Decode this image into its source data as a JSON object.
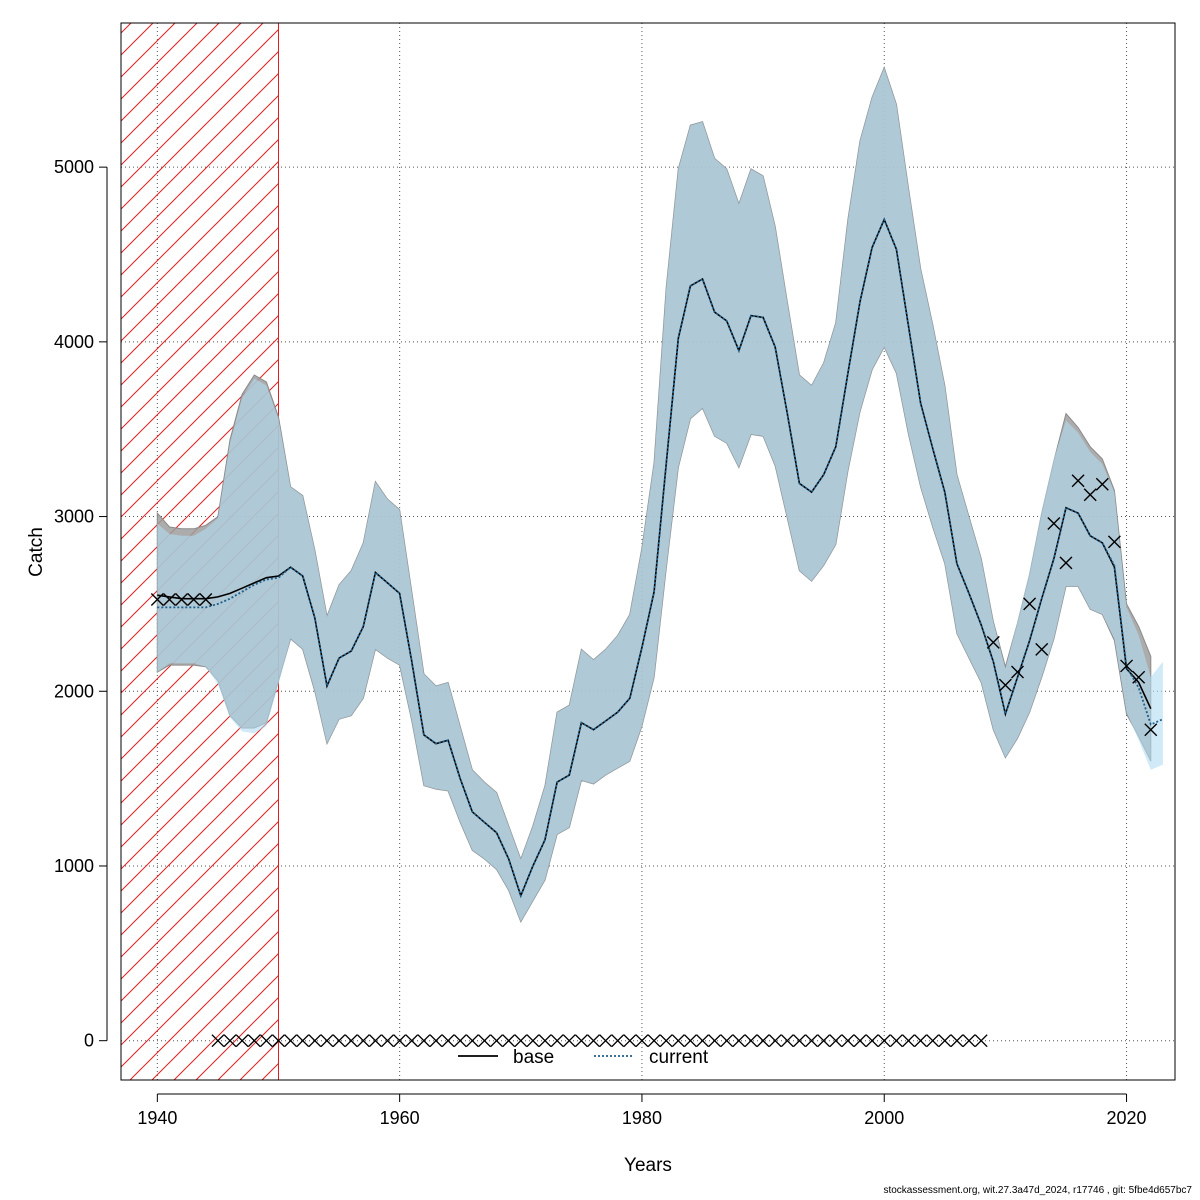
{
  "chart_data": {
    "type": "line",
    "xlabel": "Years",
    "ylabel": "Catch",
    "xlim": [
      1937,
      2024
    ],
    "ylim": [
      -225,
      5825
    ],
    "xticks": [
      1940,
      1960,
      1980,
      2000,
      2020
    ],
    "yticks": [
      0,
      1000,
      2000,
      3000,
      4000,
      5000
    ],
    "grid": true,
    "legend": {
      "position": "bottom-center",
      "entries": [
        {
          "name": "base",
          "style": "solid",
          "color": "#000000"
        },
        {
          "name": "current",
          "style": "dotted",
          "color": "#1f5f8b"
        }
      ]
    },
    "excluded_period": {
      "from": 1937,
      "to": 1950,
      "color": "#e02020"
    },
    "series": [
      {
        "name": "base",
        "style": "solid",
        "color": "#000000",
        "band_color": "#9e9e9e",
        "x": [
          1940,
          1941,
          1942,
          1943,
          1944,
          1945,
          1946,
          1947,
          1948,
          1949,
          1950,
          1951,
          1952,
          1953,
          1954,
          1955,
          1956,
          1957,
          1958,
          1959,
          1960,
          1961,
          1962,
          1963,
          1964,
          1965,
          1966,
          1967,
          1968,
          1969,
          1970,
          1971,
          1972,
          1973,
          1974,
          1975,
          1976,
          1977,
          1978,
          1979,
          1980,
          1981,
          1982,
          1983,
          1984,
          1985,
          1986,
          1987,
          1988,
          1989,
          1990,
          1991,
          1992,
          1993,
          1994,
          1995,
          1996,
          1997,
          1998,
          1999,
          2000,
          2001,
          2002,
          2003,
          2004,
          2005,
          2006,
          2007,
          2008,
          2009,
          2010,
          2011,
          2012,
          2013,
          2014,
          2015,
          2016,
          2017,
          2018,
          2019,
          2020,
          2021,
          2022
        ],
        "y": [
          2550,
          2540,
          2530,
          2530,
          2530,
          2540,
          2560,
          2590,
          2620,
          2650,
          2660,
          2710,
          2660,
          2420,
          2030,
          2190,
          2230,
          2370,
          2680,
          2620,
          2560,
          2170,
          1750,
          1700,
          1720,
          1500,
          1310,
          1250,
          1190,
          1040,
          830,
          1000,
          1150,
          1480,
          1520,
          1820,
          1780,
          1830,
          1880,
          1960,
          2250,
          2570,
          3300,
          4020,
          4320,
          4360,
          4170,
          4120,
          3950,
          4150,
          4140,
          3970,
          3590,
          3190,
          3140,
          3240,
          3400,
          3820,
          4230,
          4540,
          4700,
          4530,
          4090,
          3650,
          3390,
          3140,
          2730,
          2560,
          2380,
          2170,
          1870,
          2080,
          2290,
          2530,
          2760,
          3050,
          3020,
          2890,
          2850,
          2710,
          2130,
          2050,
          1900
        ],
        "lower": [
          2110,
          2150,
          2150,
          2150,
          2140,
          2060,
          1860,
          1790,
          1790,
          1820,
          2060,
          2300,
          2240,
          2000,
          1700,
          1840,
          1860,
          1960,
          2240,
          2190,
          2150,
          1830,
          1460,
          1440,
          1430,
          1250,
          1090,
          1040,
          980,
          860,
          680,
          800,
          920,
          1180,
          1220,
          1490,
          1470,
          1520,
          1560,
          1600,
          1800,
          2080,
          2700,
          3280,
          3560,
          3620,
          3460,
          3420,
          3280,
          3470,
          3460,
          3290,
          2990,
          2690,
          2630,
          2720,
          2840,
          3260,
          3600,
          3840,
          3970,
          3820,
          3470,
          3170,
          2940,
          2730,
          2330,
          2190,
          2050,
          1780,
          1620,
          1730,
          1880,
          2080,
          2300,
          2600,
          2600,
          2470,
          2440,
          2290,
          1870,
          1740,
          1600
        ],
        "upper": [
          3020,
          2940,
          2930,
          2930,
          2950,
          3000,
          3440,
          3700,
          3810,
          3770,
          3570,
          3170,
          3120,
          2810,
          2430,
          2610,
          2690,
          2850,
          3200,
          3100,
          3040,
          2570,
          2100,
          2030,
          2050,
          1800,
          1550,
          1480,
          1420,
          1230,
          1040,
          1230,
          1460,
          1880,
          1920,
          2240,
          2180,
          2240,
          2320,
          2440,
          2820,
          3310,
          4310,
          4990,
          5240,
          5260,
          5050,
          4990,
          4790,
          4990,
          4950,
          4660,
          4230,
          3810,
          3750,
          3880,
          4110,
          4700,
          5150,
          5400,
          5570,
          5360,
          4880,
          4420,
          4100,
          3750,
          3240,
          3000,
          2760,
          2400,
          2140,
          2390,
          2670,
          3020,
          3320,
          3590,
          3510,
          3400,
          3330,
          3150,
          2500,
          2370,
          2200
        ]
      },
      {
        "name": "current",
        "style": "dotted",
        "color": "#1f5f8b",
        "band_color": "#b2dcf1",
        "x": [
          1940,
          1941,
          1942,
          1943,
          1944,
          1945,
          1946,
          1947,
          1948,
          1949,
          1950,
          1951,
          1952,
          1953,
          1954,
          1955,
          1956,
          1957,
          1958,
          1959,
          1960,
          1961,
          1962,
          1963,
          1964,
          1965,
          1966,
          1967,
          1968,
          1969,
          1970,
          1971,
          1972,
          1973,
          1974,
          1975,
          1976,
          1977,
          1978,
          1979,
          1980,
          1981,
          1982,
          1983,
          1984,
          1985,
          1986,
          1987,
          1988,
          1989,
          1990,
          1991,
          1992,
          1993,
          1994,
          1995,
          1996,
          1997,
          1998,
          1999,
          2000,
          2001,
          2002,
          2003,
          2004,
          2005,
          2006,
          2007,
          2008,
          2009,
          2010,
          2011,
          2012,
          2013,
          2014,
          2015,
          2016,
          2017,
          2018,
          2019,
          2020,
          2021,
          2022,
          2023
        ],
        "y": [
          2480,
          2480,
          2480,
          2480,
          2480,
          2500,
          2530,
          2570,
          2610,
          2640,
          2650,
          2710,
          2660,
          2420,
          2030,
          2190,
          2230,
          2370,
          2680,
          2620,
          2560,
          2170,
          1750,
          1700,
          1720,
          1500,
          1310,
          1250,
          1190,
          1040,
          830,
          1000,
          1150,
          1480,
          1520,
          1820,
          1780,
          1830,
          1880,
          1960,
          2250,
          2570,
          3300,
          4020,
          4320,
          4360,
          4170,
          4120,
          3950,
          4150,
          4140,
          3970,
          3590,
          3190,
          3140,
          3240,
          3400,
          3820,
          4230,
          4540,
          4700,
          4530,
          4090,
          3650,
          3390,
          3140,
          2730,
          2560,
          2380,
          2170,
          1870,
          2080,
          2290,
          2530,
          2760,
          3050,
          3020,
          2890,
          2850,
          2720,
          2140,
          2020,
          1810,
          1840
        ],
        "lower": [
          2110,
          2160,
          2160,
          2160,
          2140,
          2040,
          1850,
          1770,
          1760,
          1800,
          2040,
          2300,
          2240,
          2000,
          1700,
          1840,
          1860,
          1960,
          2240,
          2190,
          2150,
          1830,
          1460,
          1440,
          1430,
          1250,
          1090,
          1040,
          980,
          860,
          680,
          800,
          920,
          1180,
          1220,
          1490,
          1470,
          1520,
          1560,
          1600,
          1800,
          2080,
          2700,
          3280,
          3560,
          3620,
          3460,
          3420,
          3280,
          3470,
          3460,
          3290,
          2990,
          2690,
          2630,
          2720,
          2840,
          3260,
          3600,
          3840,
          3970,
          3820,
          3470,
          3170,
          2940,
          2730,
          2330,
          2190,
          2050,
          1780,
          1620,
          1730,
          1880,
          2080,
          2300,
          2600,
          2600,
          2470,
          2440,
          2300,
          1880,
          1720,
          1550,
          1580
        ],
        "upper": [
          2960,
          2900,
          2890,
          2890,
          2930,
          2990,
          3420,
          3680,
          3790,
          3750,
          3560,
          3170,
          3120,
          2810,
          2430,
          2610,
          2690,
          2850,
          3200,
          3100,
          3040,
          2570,
          2100,
          2030,
          2050,
          1800,
          1550,
          1480,
          1420,
          1230,
          1040,
          1230,
          1460,
          1880,
          1920,
          2240,
          2180,
          2240,
          2320,
          2440,
          2820,
          3310,
          4310,
          4990,
          5240,
          5260,
          5050,
          4990,
          4790,
          4990,
          4950,
          4660,
          4230,
          3810,
          3750,
          3880,
          4110,
          4700,
          5150,
          5400,
          5570,
          5360,
          4880,
          4420,
          4100,
          3750,
          3240,
          3000,
          2760,
          2400,
          2130,
          2400,
          2680,
          3030,
          3330,
          3550,
          3480,
          3370,
          3300,
          3140,
          2480,
          2320,
          2080,
          2170
        ]
      },
      {
        "name": "observations",
        "style": "cross",
        "color": "#000000",
        "x": [
          1940,
          1941,
          1942,
          1943,
          1944,
          2009,
          2010,
          2011,
          2012,
          2013,
          2014,
          2015,
          2016,
          2017,
          2018,
          2019,
          2020,
          2021,
          2022
        ],
        "y": [
          2525,
          2525,
          2525,
          2525,
          2525,
          2280,
          2035,
          2110,
          2500,
          2240,
          2960,
          2735,
          3205,
          3125,
          3185,
          2855,
          2145,
          2080,
          1780
        ]
      },
      {
        "name": "zero-observations",
        "style": "cross",
        "color": "#000000",
        "x": [
          1945,
          1946,
          1947,
          1948,
          1949,
          1950,
          1951,
          1952,
          1953,
          1954,
          1955,
          1956,
          1957,
          1958,
          1959,
          1960,
          1961,
          1962,
          1963,
          1964,
          1965,
          1966,
          1967,
          1968,
          1969,
          1970,
          1971,
          1972,
          1973,
          1974,
          1975,
          1976,
          1977,
          1978,
          1979,
          1980,
          1981,
          1982,
          1983,
          1984,
          1985,
          1986,
          1987,
          1988,
          1989,
          1990,
          1991,
          1992,
          1993,
          1994,
          1995,
          1996,
          1997,
          1998,
          1999,
          2000,
          2001,
          2002,
          2003,
          2004,
          2005,
          2006,
          2007,
          2008
        ],
        "y": [
          0,
          0,
          0,
          0,
          0,
          0,
          0,
          0,
          0,
          0,
          0,
          0,
          0,
          0,
          0,
          0,
          0,
          0,
          0,
          0,
          0,
          0,
          0,
          0,
          0,
          0,
          0,
          0,
          0,
          0,
          0,
          0,
          0,
          0,
          0,
          0,
          0,
          0,
          0,
          0,
          0,
          0,
          0,
          0,
          0,
          0,
          0,
          0,
          0,
          0,
          0,
          0,
          0,
          0,
          0,
          0,
          0,
          0,
          0,
          0,
          0,
          0,
          0,
          0
        ]
      }
    ]
  },
  "footer": "stockassessment.org, wit.27.3a47d_2024, r17746 , git: 5fbe4d657bc7"
}
